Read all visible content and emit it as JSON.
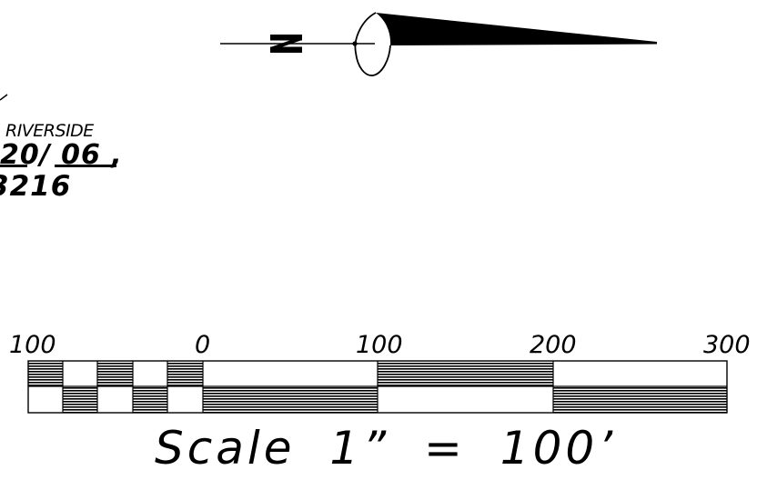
{
  "stamp": {
    "line1": "RIVERSIDE",
    "line2": "20/ 06 ,",
    "line3": "3216"
  },
  "scale_bar": {
    "tick_labels": [
      "100",
      "0",
      "100",
      "200",
      "300"
    ],
    "caption": "Scale 1” = 100’"
  },
  "north_arrow": {
    "label": "N",
    "icon": "north-arrow-icon"
  },
  "colors": {
    "ink": "#000000",
    "paper": "#ffffff"
  }
}
